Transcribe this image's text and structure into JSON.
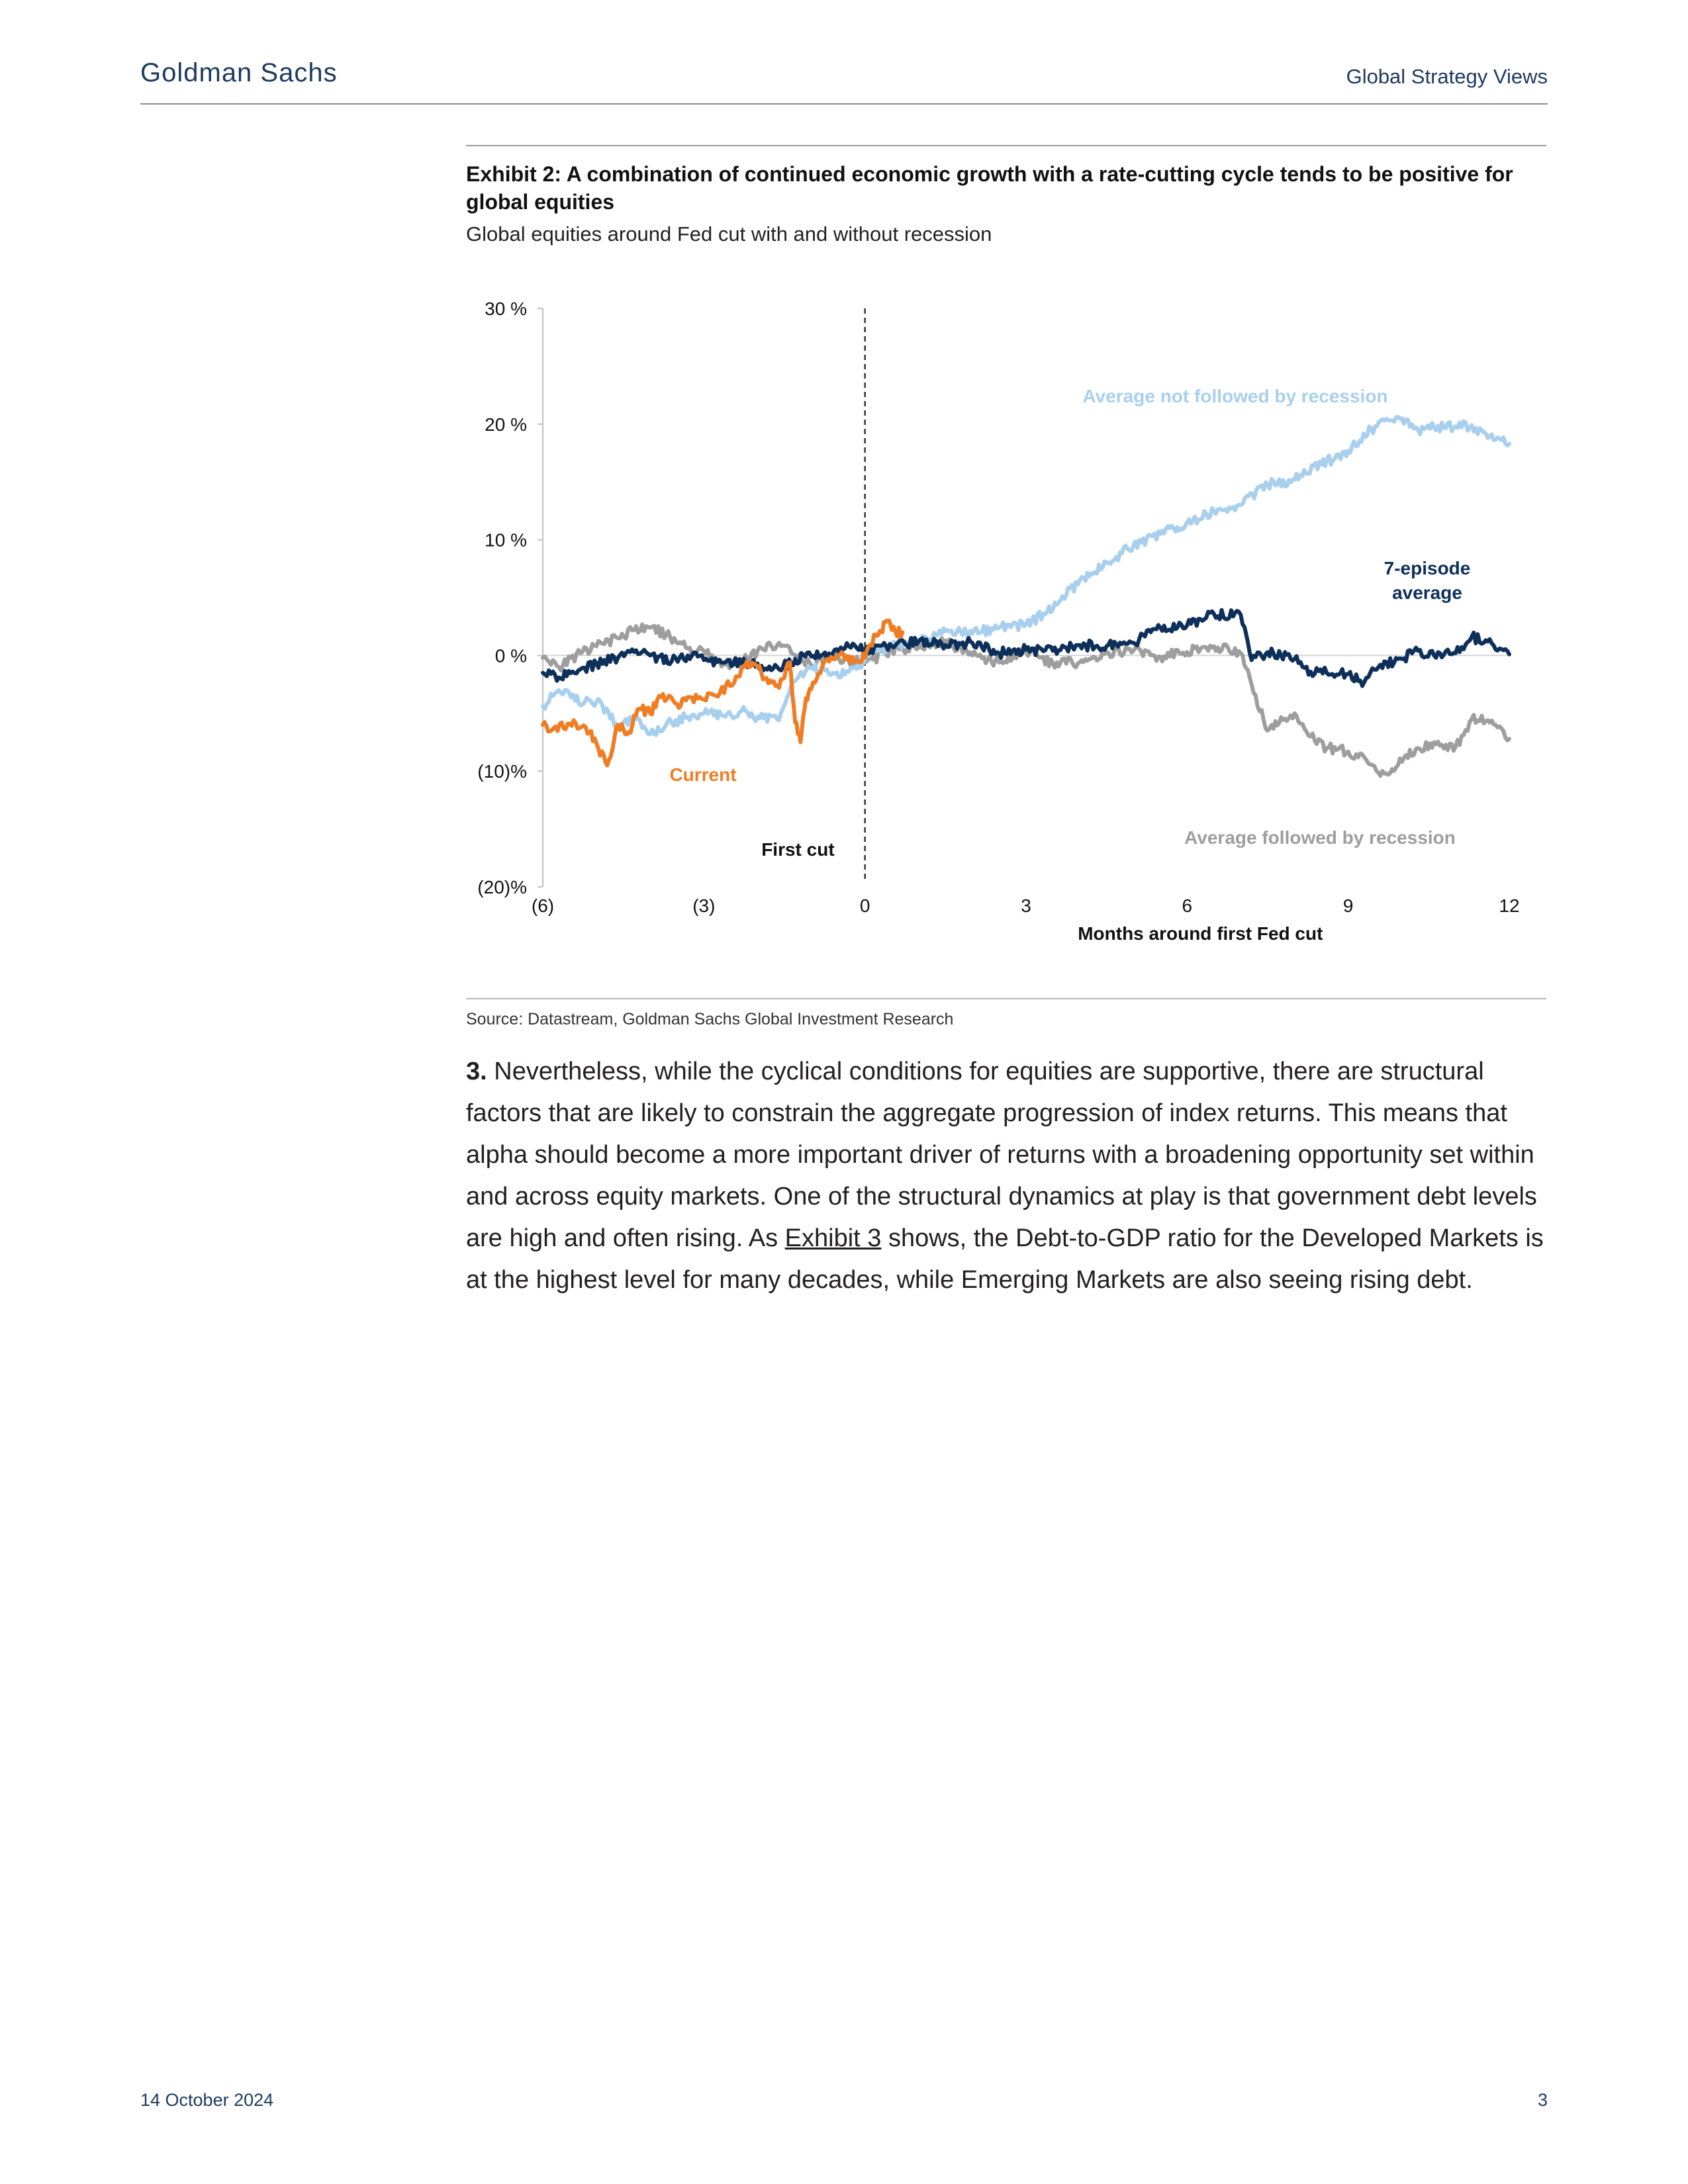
{
  "header": {
    "brand": "Goldman Sachs",
    "section": "Global Strategy Views"
  },
  "exhibit": {
    "title": "Exhibit 2: A combination of continued economic growth with a rate-cutting cycle tends to be positive for global equities",
    "subtitle": "Global equities around Fed cut with and without recession",
    "source": "Source: Datastream, Goldman Sachs Global Investment Research"
  },
  "chart_data": {
    "type": "line",
    "title": "",
    "xlabel": "Months around first Fed cut",
    "ylabel": "",
    "xlim": [
      -6,
      12
    ],
    "ylim": [
      -20,
      30
    ],
    "x_ticks": [
      -6,
      -3,
      0,
      3,
      6,
      9,
      12
    ],
    "x_tick_labels": [
      "(6)",
      "(3)",
      "0",
      "3",
      "6",
      "9",
      "12"
    ],
    "y_ticks": [
      -20,
      -10,
      0,
      10,
      20,
      30
    ],
    "y_tick_labels": [
      "(20)%",
      "(10)%",
      "0 %",
      "10 %",
      "20 %",
      "30 %"
    ],
    "grid": false,
    "vline": {
      "x": 0,
      "label": "First cut"
    },
    "series": [
      {
        "name": "Average followed by recession",
        "color": "#9e9e9e",
        "x": [
          -6,
          -5.7,
          -5.3,
          -5,
          -4.6,
          -4.3,
          -4,
          -3.7,
          -3.3,
          -3,
          -2.6,
          -2.3,
          -2,
          -1.6,
          -1.3,
          -1,
          -0.6,
          -0.3,
          0,
          0.5,
          1,
          1.5,
          2,
          2.5,
          3,
          3.5,
          4,
          4.5,
          5,
          5.5,
          6,
          6.5,
          7,
          7.2,
          7.5,
          8,
          8.3,
          8.6,
          9,
          9.3,
          9.6,
          10,
          10.3,
          10.6,
          11,
          11.3,
          11.6,
          12
        ],
        "y": [
          -0.2,
          -1.0,
          0.2,
          0.8,
          1.5,
          2.2,
          2.4,
          1.8,
          0.6,
          0.4,
          -0.8,
          -0.6,
          0.4,
          1.1,
          0.0,
          -0.9,
          -0.1,
          -0.5,
          -0.6,
          0.4,
          0.7,
          1.3,
          0.0,
          -0.6,
          0.4,
          -0.7,
          -0.6,
          0.3,
          0.4,
          -0.1,
          0.3,
          0.8,
          0.2,
          -2.5,
          -6.5,
          -5.0,
          -7.0,
          -8.0,
          -8.3,
          -8.8,
          -10.4,
          -9.2,
          -8.0,
          -7.5,
          -7.9,
          -5.5,
          -5.6,
          -7.2
        ]
      },
      {
        "name": "Average not followed by recession",
        "color": "#a8cfee",
        "x": [
          -6,
          -5.7,
          -5.4,
          -5,
          -4.6,
          -4.3,
          -4,
          -3.6,
          -3.3,
          -3,
          -2.6,
          -2.3,
          -2,
          -1.6,
          -1.3,
          -1,
          -0.6,
          -0.3,
          0,
          0.5,
          1,
          1.5,
          2,
          2.5,
          3,
          3.5,
          4,
          4.5,
          5,
          5.5,
          6,
          6.5,
          7,
          7.5,
          8,
          8.5,
          9,
          9.5,
          10,
          10.3,
          10.6,
          11,
          11.3,
          11.6,
          12
        ],
        "y": [
          -4.4,
          -3.0,
          -3.9,
          -4.0,
          -6.1,
          -5.5,
          -6.8,
          -5.8,
          -5.3,
          -5.0,
          -5.3,
          -4.8,
          -5.3,
          -5.6,
          -2.2,
          -1.1,
          -1.5,
          -1.4,
          -0.4,
          0.9,
          1.3,
          2.1,
          1.9,
          2.4,
          2.7,
          4.0,
          6.5,
          8.0,
          9.5,
          10.5,
          11.5,
          12.5,
          13.0,
          14.8,
          15.2,
          16.5,
          17.7,
          19.8,
          20.5,
          19.5,
          19.7,
          19.8,
          19.9,
          18.8,
          18.3
        ]
      },
      {
        "name": "7-episode average",
        "color": "#0d2f5a",
        "x": [
          -6,
          -5.7,
          -5.3,
          -5,
          -4.6,
          -4.3,
          -4,
          -3.6,
          -3.3,
          -3,
          -2.6,
          -2.3,
          -2,
          -1.6,
          -1.3,
          -1,
          -0.6,
          -0.3,
          0,
          0.5,
          1,
          1.5,
          2,
          2.5,
          3,
          3.5,
          4,
          4.5,
          5,
          5.5,
          6,
          6.5,
          7,
          7.2,
          7.5,
          8,
          8.3,
          8.6,
          9,
          9.3,
          9.6,
          10,
          10.3,
          10.6,
          11,
          11.3,
          11.6,
          12
        ],
        "y": [
          -1.5,
          -1.9,
          -1.2,
          -0.7,
          -0.2,
          0.3,
          0.0,
          -0.5,
          0.0,
          -0.4,
          -0.6,
          -0.7,
          -0.7,
          -1.2,
          -0.3,
          -0.1,
          0.2,
          0.8,
          0.5,
          0.8,
          1.2,
          0.9,
          1.1,
          0.2,
          0.5,
          0.4,
          0.9,
          0.8,
          1.1,
          2.4,
          2.6,
          3.6,
          3.5,
          -0.4,
          0.3,
          -0.3,
          -1.4,
          -1.5,
          -1.6,
          -2.3,
          -0.8,
          -0.3,
          0.4,
          0.0,
          0.2,
          1.6,
          1.2,
          0.1
        ]
      },
      {
        "name": "Current",
        "color": "#f07d23",
        "x": [
          -6,
          -5.8,
          -5.5,
          -5.2,
          -5,
          -4.8,
          -4.6,
          -4.4,
          -4.2,
          -4,
          -3.8,
          -3.5,
          -3.3,
          -3,
          -2.7,
          -2.4,
          -2.2,
          -2,
          -1.8,
          -1.6,
          -1.4,
          -1.3,
          -1.2,
          -1.1,
          -1,
          -0.8,
          -0.6,
          -0.4,
          -0.2,
          0,
          0.2,
          0.3,
          0.4,
          0.5,
          0.7
        ],
        "y": [
          -6.0,
          -6.3,
          -5.9,
          -6.2,
          -7.6,
          -9.5,
          -6.0,
          -6.6,
          -4.6,
          -5.0,
          -3.6,
          -4.2,
          -3.6,
          -3.8,
          -3.2,
          -1.8,
          -0.5,
          -1.0,
          -2.4,
          -2.8,
          -0.6,
          -5.8,
          -7.5,
          -3.7,
          -2.9,
          -1.0,
          -0.3,
          0.1,
          -0.5,
          -0.2,
          1.8,
          2.1,
          3.0,
          2.2,
          2.0
        ]
      }
    ],
    "annotations": [
      {
        "text": "Average not followed by recession",
        "color": "#a8cfee"
      },
      {
        "text": "7-episode",
        "color": "#0d2f5a"
      },
      {
        "text": "average",
        "color": "#0d2f5a"
      },
      {
        "text": "Current",
        "color": "#f07d23"
      },
      {
        "text": "Average followed by recession",
        "color": "#9e9e9e"
      }
    ]
  },
  "body": {
    "num": "3.",
    "text_before": " Nevertheless, while the cyclical conditions for equities are supportive, there are structural factors that are likely to constrain the aggregate progression of index returns. This means that alpha should become a more important driver of returns with a broadening opportunity set within and across equity markets. One of the structural dynamics at play is that government debt levels are high and often rising. As ",
    "link": "Exhibit 3",
    "text_after": " shows, the Debt-to-GDP ratio for the Developed Markets is at the highest level for many decades, while Emerging Markets are also seeing rising debt."
  },
  "footer": {
    "date": "14 October 2024",
    "page": "3"
  }
}
